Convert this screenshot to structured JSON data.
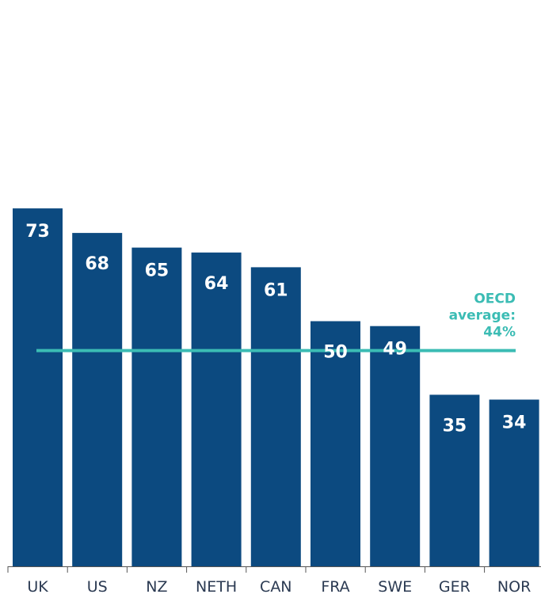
{
  "chart_data": {
    "type": "bar",
    "categories": [
      "UK",
      "US",
      "NZ",
      "NETH",
      "CAN",
      "FRA",
      "SWE",
      "GER",
      "NOR"
    ],
    "values": [
      73,
      68,
      65,
      64,
      61,
      50,
      49,
      35,
      34
    ],
    "value_labels": [
      "73",
      "68",
      "65",
      "64",
      "61",
      "50",
      "49",
      "35",
      "34"
    ],
    "ylim": [
      0,
      73
    ],
    "grid": false,
    "reference_line": {
      "value": 44,
      "label_lines": [
        "OECD",
        "average:",
        "44%"
      ]
    }
  },
  "colors": {
    "bar": "#0c4a80",
    "reference_line": "#3bbcb4",
    "axis": "#555555"
  }
}
